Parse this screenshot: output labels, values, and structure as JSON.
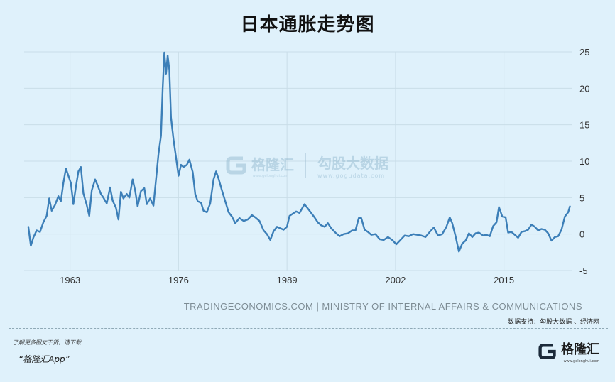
{
  "header": {
    "title": "日本通胀走势图"
  },
  "watermark": {
    "brand": "格隆汇",
    "brand_url": "www.gelonghui.com",
    "partner": "勾股大数据",
    "partner_url": "www.gogudata.com"
  },
  "footer": {
    "source": "TRADINGECONOMICS.COM | MINISTRY OF INTERNAL AFFAIRS & COMMUNICATIONS",
    "data_support": "数据支持：勾股大数据 、经济网",
    "promo_line1": "了解更多图文干货，请下载",
    "promo_line2": "“格隆汇App”",
    "logo_text": "格隆汇",
    "logo_sub": "www.gelonghui.com"
  },
  "colors": {
    "background": "#dff1fb",
    "line": "#3c7fb8",
    "grid": "#c9dde8"
  },
  "chart_data": {
    "type": "line",
    "title": "日本通胀走势图",
    "xlabel": "",
    "ylabel": "",
    "xlim": [
      1957.5,
      2023.2
    ],
    "ylim": [
      -5,
      25
    ],
    "x_ticks": [
      "1963",
      "1976",
      "1989",
      "2002",
      "2015"
    ],
    "y_ticks": [
      "25",
      "20",
      "15",
      "10",
      "5",
      "0",
      "-5"
    ],
    "grid": true,
    "series": [
      {
        "name": "",
        "points": [
          [
            1958.0,
            1.0
          ],
          [
            1958.3,
            -1.6
          ],
          [
            1958.6,
            -0.5
          ],
          [
            1959.0,
            0.5
          ],
          [
            1959.4,
            0.3
          ],
          [
            1959.8,
            1.6
          ],
          [
            1960.2,
            2.5
          ],
          [
            1960.5,
            4.9
          ],
          [
            1960.8,
            3.2
          ],
          [
            1961.2,
            4.0
          ],
          [
            1961.6,
            5.2
          ],
          [
            1961.9,
            4.5
          ],
          [
            1962.2,
            7.0
          ],
          [
            1962.5,
            9.0
          ],
          [
            1962.8,
            8.0
          ],
          [
            1963.1,
            7.0
          ],
          [
            1963.4,
            4.1
          ],
          [
            1963.7,
            6.5
          ],
          [
            1964.0,
            8.6
          ],
          [
            1964.3,
            9.2
          ],
          [
            1964.6,
            5.6
          ],
          [
            1965.0,
            4.0
          ],
          [
            1965.3,
            2.5
          ],
          [
            1965.6,
            6.0
          ],
          [
            1966.0,
            7.5
          ],
          [
            1966.3,
            6.7
          ],
          [
            1966.7,
            5.5
          ],
          [
            1967.0,
            5.0
          ],
          [
            1967.4,
            4.2
          ],
          [
            1967.8,
            6.4
          ],
          [
            1968.1,
            4.6
          ],
          [
            1968.5,
            3.6
          ],
          [
            1968.8,
            2.0
          ],
          [
            1969.1,
            5.8
          ],
          [
            1969.4,
            4.9
          ],
          [
            1969.8,
            5.5
          ],
          [
            1970.1,
            5.0
          ],
          [
            1970.5,
            7.5
          ],
          [
            1970.8,
            6.0
          ],
          [
            1971.1,
            3.8
          ],
          [
            1971.5,
            5.9
          ],
          [
            1971.9,
            6.3
          ],
          [
            1972.2,
            4.1
          ],
          [
            1972.6,
            4.9
          ],
          [
            1973.0,
            3.9
          ],
          [
            1973.3,
            7.5
          ],
          [
            1973.6,
            11.0
          ],
          [
            1973.9,
            13.5
          ],
          [
            1974.1,
            20.0
          ],
          [
            1974.3,
            24.9
          ],
          [
            1974.5,
            22.0
          ],
          [
            1974.7,
            24.5
          ],
          [
            1974.9,
            22.5
          ],
          [
            1975.1,
            16.0
          ],
          [
            1975.4,
            13.0
          ],
          [
            1975.7,
            10.5
          ],
          [
            1976.0,
            8.0
          ],
          [
            1976.3,
            9.5
          ],
          [
            1976.6,
            9.2
          ],
          [
            1977.0,
            9.5
          ],
          [
            1977.3,
            10.2
          ],
          [
            1977.7,
            8.5
          ],
          [
            1978.0,
            5.5
          ],
          [
            1978.3,
            4.5
          ],
          [
            1978.7,
            4.3
          ],
          [
            1979.0,
            3.2
          ],
          [
            1979.4,
            3.0
          ],
          [
            1979.8,
            4.2
          ],
          [
            1980.2,
            7.5
          ],
          [
            1980.5,
            8.6
          ],
          [
            1980.8,
            7.6
          ],
          [
            1981.2,
            6.0
          ],
          [
            1981.6,
            4.5
          ],
          [
            1982.0,
            3.0
          ],
          [
            1982.4,
            2.4
          ],
          [
            1982.8,
            1.5
          ],
          [
            1983.3,
            2.2
          ],
          [
            1983.8,
            1.8
          ],
          [
            1984.3,
            2.0
          ],
          [
            1984.8,
            2.6
          ],
          [
            1985.2,
            2.3
          ],
          [
            1985.7,
            1.8
          ],
          [
            1986.2,
            0.5
          ],
          [
            1986.6,
            0.0
          ],
          [
            1987.0,
            -0.8
          ],
          [
            1987.4,
            0.4
          ],
          [
            1987.8,
            1.0
          ],
          [
            1988.2,
            0.8
          ],
          [
            1988.6,
            0.6
          ],
          [
            1989.0,
            1.0
          ],
          [
            1989.3,
            2.5
          ],
          [
            1989.7,
            2.8
          ],
          [
            1990.1,
            3.1
          ],
          [
            1990.5,
            2.9
          ],
          [
            1990.8,
            3.5
          ],
          [
            1991.1,
            4.1
          ],
          [
            1991.5,
            3.5
          ],
          [
            1991.9,
            2.9
          ],
          [
            1992.3,
            2.3
          ],
          [
            1992.7,
            1.6
          ],
          [
            1993.1,
            1.2
          ],
          [
            1993.5,
            1.0
          ],
          [
            1993.9,
            1.5
          ],
          [
            1994.3,
            0.8
          ],
          [
            1994.8,
            0.2
          ],
          [
            1995.3,
            -0.3
          ],
          [
            1995.8,
            0.0
          ],
          [
            1996.3,
            0.1
          ],
          [
            1996.8,
            0.5
          ],
          [
            1997.2,
            0.5
          ],
          [
            1997.6,
            2.2
          ],
          [
            1997.9,
            2.2
          ],
          [
            1998.3,
            0.6
          ],
          [
            1998.7,
            0.3
          ],
          [
            1999.1,
            -0.1
          ],
          [
            1999.6,
            0.0
          ],
          [
            2000.1,
            -0.7
          ],
          [
            2000.6,
            -0.8
          ],
          [
            2001.1,
            -0.4
          ],
          [
            2001.6,
            -0.8
          ],
          [
            2002.1,
            -1.4
          ],
          [
            2002.6,
            -0.8
          ],
          [
            2003.1,
            -0.2
          ],
          [
            2003.6,
            -0.3
          ],
          [
            2004.1,
            0.0
          ],
          [
            2004.6,
            -0.1
          ],
          [
            2005.1,
            -0.2
          ],
          [
            2005.6,
            -0.4
          ],
          [
            2006.1,
            0.3
          ],
          [
            2006.6,
            0.9
          ],
          [
            2007.1,
            -0.2
          ],
          [
            2007.6,
            0.0
          ],
          [
            2008.1,
            1.0
          ],
          [
            2008.5,
            2.3
          ],
          [
            2008.8,
            1.5
          ],
          [
            2009.2,
            -0.3
          ],
          [
            2009.6,
            -2.4
          ],
          [
            2010.0,
            -1.3
          ],
          [
            2010.4,
            -0.9
          ],
          [
            2010.8,
            0.1
          ],
          [
            2011.2,
            -0.4
          ],
          [
            2011.6,
            0.1
          ],
          [
            2012.0,
            0.2
          ],
          [
            2012.5,
            -0.2
          ],
          [
            2012.9,
            -0.1
          ],
          [
            2013.3,
            -0.3
          ],
          [
            2013.7,
            1.1
          ],
          [
            2014.1,
            1.6
          ],
          [
            2014.4,
            3.7
          ],
          [
            2014.8,
            2.4
          ],
          [
            2015.2,
            2.3
          ],
          [
            2015.5,
            0.2
          ],
          [
            2015.9,
            0.3
          ],
          [
            2016.3,
            -0.1
          ],
          [
            2016.7,
            -0.5
          ],
          [
            2017.1,
            0.3
          ],
          [
            2017.5,
            0.4
          ],
          [
            2017.9,
            0.6
          ],
          [
            2018.3,
            1.3
          ],
          [
            2018.7,
            1.0
          ],
          [
            2019.1,
            0.5
          ],
          [
            2019.5,
            0.7
          ],
          [
            2019.9,
            0.6
          ],
          [
            2020.3,
            0.1
          ],
          [
            2020.7,
            -0.9
          ],
          [
            2021.1,
            -0.4
          ],
          [
            2021.5,
            -0.3
          ],
          [
            2021.9,
            0.6
          ],
          [
            2022.3,
            2.4
          ],
          [
            2022.7,
            3.0
          ],
          [
            2022.9,
            3.8
          ]
        ]
      }
    ]
  }
}
